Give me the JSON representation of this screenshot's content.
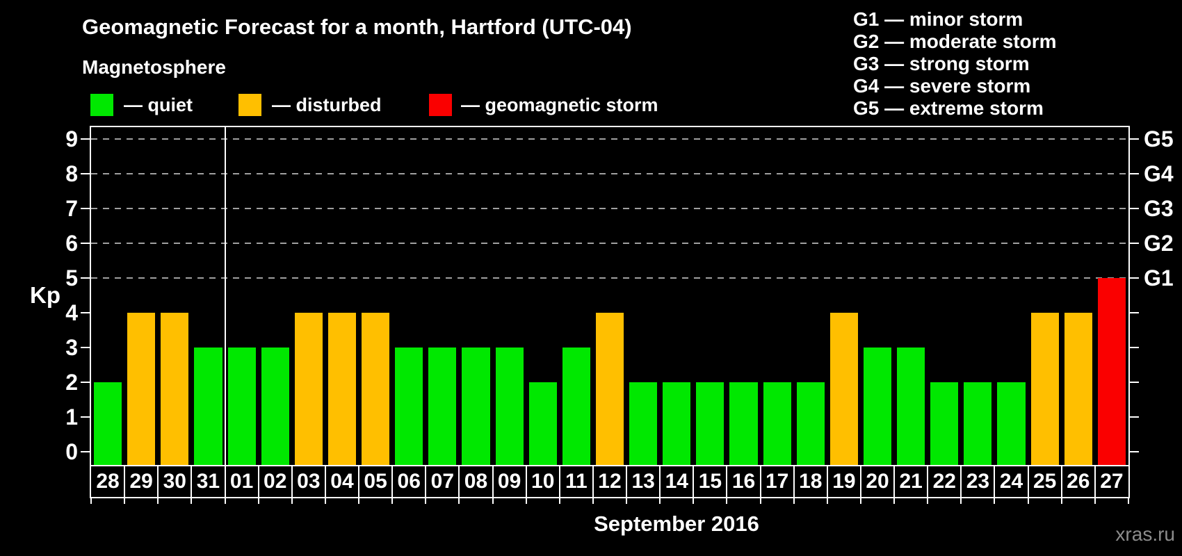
{
  "title": "Geomagnetic Forecast for a month, Hartford (UTC-04)",
  "subtitle": "Magnetosphere",
  "legend": {
    "quiet": "— quiet",
    "disturbed": "— disturbed",
    "storm": "— geomagnetic storm"
  },
  "g_scale_legend": [
    "G1 — minor storm",
    "G2 — moderate storm",
    "G3 — strong storm",
    "G4 — severe storm",
    "G5 — extreme storm"
  ],
  "watermark": "xras.ru",
  "colors": {
    "quiet": "#00E800",
    "disturbed": "#FFBF00",
    "storm": "#FA0000",
    "axis": "#FFFFFF",
    "gridline": "#A0A0A0",
    "watermark": "#8C8C8C"
  },
  "chart_data": {
    "type": "bar",
    "title": "Geomagnetic Forecast for a month, Hartford (UTC-04)",
    "xlabel": "September 2016",
    "ylabel": "Kp",
    "ylim": [
      0,
      9.4
    ],
    "y_ticks": [
      0,
      1,
      2,
      3,
      4,
      5,
      6,
      7,
      8,
      9
    ],
    "gridlines_at": [
      5,
      6,
      7,
      8,
      9
    ],
    "grid": "dashed horizontal at storm levels only",
    "legend_position": "top",
    "right_axis_labels": [
      {
        "value": 5,
        "label": "G1"
      },
      {
        "value": 6,
        "label": "G2"
      },
      {
        "value": 7,
        "label": "G3"
      },
      {
        "value": 8,
        "label": "G4"
      },
      {
        "value": 9,
        "label": "G5"
      }
    ],
    "month_separator_after": "31",
    "categories": [
      "28",
      "29",
      "30",
      "31",
      "01",
      "02",
      "03",
      "04",
      "05",
      "06",
      "07",
      "08",
      "09",
      "10",
      "11",
      "12",
      "13",
      "14",
      "15",
      "16",
      "17",
      "18",
      "19",
      "20",
      "21",
      "22",
      "23",
      "24",
      "25",
      "26",
      "27"
    ],
    "values": [
      2,
      4,
      4,
      3,
      3,
      3,
      4,
      4,
      4,
      3,
      3,
      3,
      3,
      2,
      3,
      4,
      2,
      2,
      2,
      2,
      2,
      2,
      4,
      3,
      3,
      2,
      2,
      2,
      4,
      4,
      5
    ],
    "statuses": [
      "quiet",
      "disturbed",
      "disturbed",
      "quiet",
      "quiet",
      "quiet",
      "disturbed",
      "disturbed",
      "disturbed",
      "quiet",
      "quiet",
      "quiet",
      "quiet",
      "quiet",
      "quiet",
      "disturbed",
      "quiet",
      "quiet",
      "quiet",
      "quiet",
      "quiet",
      "quiet",
      "disturbed",
      "quiet",
      "quiet",
      "quiet",
      "quiet",
      "quiet",
      "disturbed",
      "disturbed",
      "storm"
    ]
  }
}
